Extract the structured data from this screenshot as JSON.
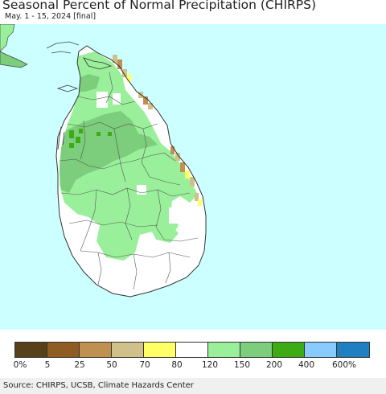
{
  "title": "Seasonal Percent of Normal Precipitation (CHIRPS)",
  "subtitle": "May. 1 - 15, 2024 [final]",
  "source": "Source: CHIRPS, UCSB, Climate Hazards Center",
  "colors": {
    "ocean": "#ccffff",
    "land_default": "#ffffff",
    "land_light_green": "#9af09a",
    "land_mid_green": "#7ccd7c",
    "land_dark_green": "#3cab14",
    "dry_brown": "#c09050",
    "dry_tan": "#d0c089",
    "dry_yellow": "#ffff66",
    "boundary": "#444444"
  },
  "legend": {
    "colors": [
      "#58401a",
      "#8f5d22",
      "#c09050",
      "#d0c089",
      "#ffff66",
      "#ffffff",
      "#9af09a",
      "#7ccd7c",
      "#3cab14",
      "#88ccff",
      "#1e7fc1"
    ],
    "labels": [
      "0%",
      "5",
      "25",
      "50",
      "70",
      "80",
      "120",
      "150",
      "200",
      "400",
      "600%"
    ]
  }
}
